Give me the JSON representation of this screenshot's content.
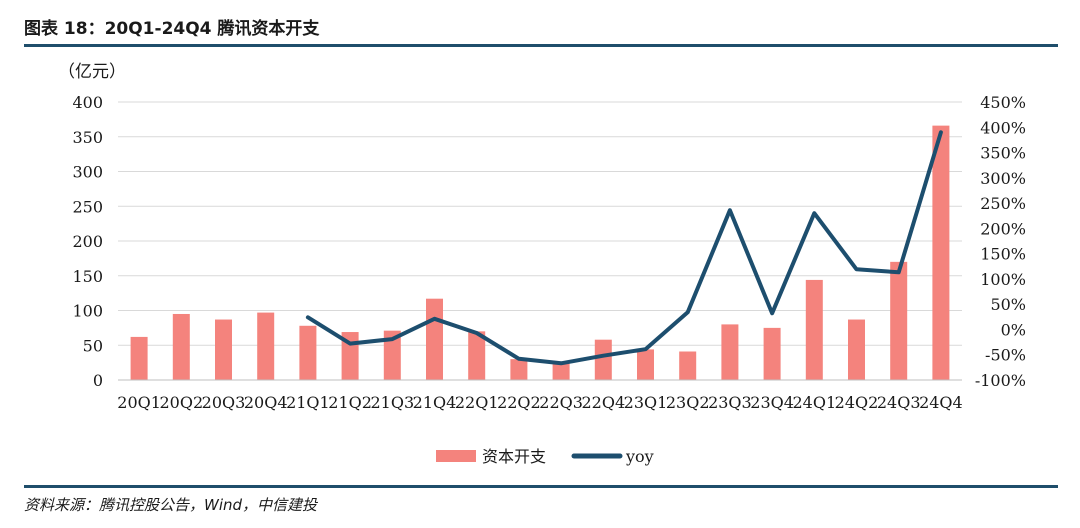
{
  "figure_title": "图表 18：20Q1-24Q4 腾讯资本开支",
  "source": "资料来源：腾讯控股公告，Wind，中信建投",
  "colors": {
    "bar": "#f4837d",
    "line": "#1d4e6e",
    "rule": "#1f4e6b",
    "grid": "#d9d9d9"
  },
  "chart_data": {
    "type": "bar",
    "unit_label": "（亿元）",
    "categories": [
      "20Q1",
      "20Q2",
      "20Q3",
      "20Q4",
      "21Q1",
      "21Q2",
      "21Q3",
      "21Q4",
      "22Q1",
      "22Q2",
      "22Q3",
      "22Q4",
      "23Q1",
      "23Q2",
      "23Q3",
      "23Q4",
      "24Q1",
      "24Q2",
      "24Q3",
      "24Q4"
    ],
    "y_left": {
      "lim": [
        0,
        400
      ],
      "ticks": [
        0,
        50,
        100,
        150,
        200,
        250,
        300,
        350,
        400
      ],
      "tick_labels": [
        "0",
        "50",
        "100",
        "150",
        "200",
        "250",
        "300",
        "350",
        "400"
      ]
    },
    "y_right": {
      "lim": [
        -100,
        450
      ],
      "ticks": [
        -100,
        -50,
        0,
        50,
        100,
        150,
        200,
        250,
        300,
        350,
        400,
        450
      ],
      "tick_labels": [
        "-100%",
        "-50%",
        "0%",
        "50%",
        "100%",
        "150%",
        "200%",
        "250%",
        "300%",
        "350%",
        "400%",
        "450%"
      ]
    },
    "grid": true,
    "legend_position": "bottom-center",
    "series": [
      {
        "name": "资本开支",
        "type": "bar",
        "axis": "left",
        "values": [
          62,
          95,
          87,
          97,
          78,
          69,
          71,
          117,
          70,
          30,
          25,
          58,
          44,
          41,
          80,
          75,
          144,
          87,
          170,
          366
        ]
      },
      {
        "name": "yoy",
        "type": "line",
        "axis": "right",
        "values": [
          null,
          null,
          null,
          null,
          24,
          -28,
          -19,
          21,
          -7,
          -58,
          -67,
          -52,
          -39,
          34,
          236,
          32,
          230,
          119,
          113,
          390
        ]
      }
    ]
  }
}
